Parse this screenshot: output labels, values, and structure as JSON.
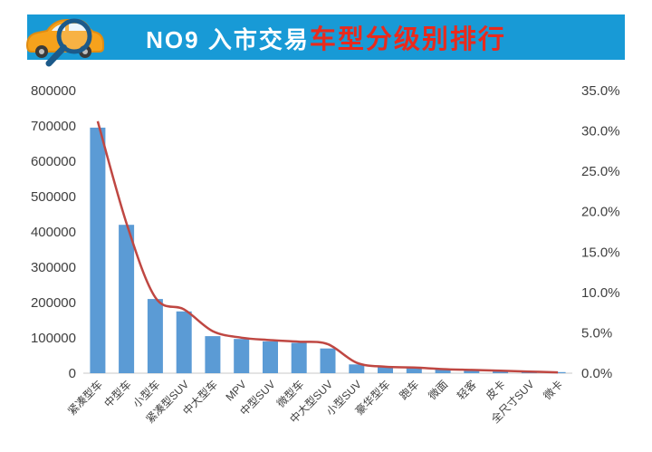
{
  "header": {
    "title_prefix": "NO9 入市交易",
    "title_highlight": "车型分级别排行",
    "banner_color": "#189ad6",
    "highlight_color": "#ea2a1c",
    "icon": "car-magnifier-icon"
  },
  "chart_data": {
    "type": "bar",
    "subtype": "bar-line-combo",
    "title": "NO9 入市交易车型分级别排行",
    "categories": [
      "紧凑型车",
      "中型车",
      "小型车",
      "紧凑型SUV",
      "中大型车",
      "MPV",
      "中型SUV",
      "微型车",
      "中大型SUV",
      "小型SUV",
      "豪华型车",
      "跑车",
      "微面",
      "轻客",
      "皮卡",
      "全尺寸SUV",
      "微卡"
    ],
    "series": [
      {
        "name": "bars",
        "type": "bar",
        "axis": "left",
        "color": "#5b9bd5",
        "values": [
          695000,
          420000,
          210000,
          175000,
          105000,
          97000,
          90000,
          86000,
          70000,
          25000,
          17000,
          15000,
          12000,
          9000,
          6000,
          4000,
          3000
        ]
      },
      {
        "name": "line",
        "type": "line",
        "axis": "right",
        "color": "#bf4742",
        "values": [
          31.2,
          18.6,
          9.4,
          7.9,
          5.2,
          4.4,
          4.1,
          3.9,
          3.6,
          1.3,
          0.8,
          0.7,
          0.5,
          0.4,
          0.3,
          0.2,
          0.1
        ]
      }
    ],
    "left_axis": {
      "min": 0,
      "max": 800000,
      "step": 100000,
      "labels": [
        "0",
        "100000",
        "200000",
        "300000",
        "400000",
        "500000",
        "600000",
        "700000",
        "800000"
      ]
    },
    "right_axis": {
      "min": 0,
      "max": 35,
      "step": 5,
      "labels": [
        "0.0%",
        "5.0%",
        "10.0%",
        "15.0%",
        "20.0%",
        "25.0%",
        "30.0%",
        "35.0%"
      ]
    },
    "grid": false,
    "legend": "none",
    "xlabel": "",
    "ylabel": ""
  }
}
